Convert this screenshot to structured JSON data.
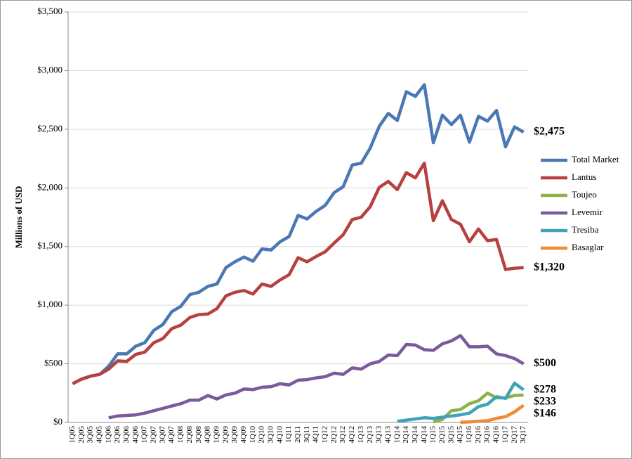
{
  "chart_data": {
    "type": "line",
    "y_label": "Millions of USD",
    "categories": [
      "1Q05",
      "2Q05",
      "3Q05",
      "4Q05",
      "1Q06",
      "2Q06",
      "3Q06",
      "4Q06",
      "1Q07",
      "2Q07",
      "3Q07",
      "4Q07",
      "1Q08",
      "2Q08",
      "3Q08",
      "4Q08",
      "1Q09",
      "2Q09",
      "3Q09",
      "4Q09",
      "1Q10",
      "2Q10",
      "3Q10",
      "4Q10",
      "1Q11",
      "2Q11",
      "3Q11",
      "4Q11",
      "1Q12",
      "2Q12",
      "3Q12",
      "4Q12",
      "1Q13",
      "2Q13",
      "3Q13",
      "4Q13",
      "1Q14",
      "2Q14",
      "3Q14",
      "4Q14",
      "1Q15",
      "2Q15",
      "3Q15",
      "4Q15",
      "1Q16",
      "2Q16",
      "3Q16",
      "4Q16",
      "1Q17",
      "2Q17",
      "3Q17"
    ],
    "ylim": [
      0,
      3500
    ],
    "yticks": [
      {
        "value": 0,
        "label": "$0"
      },
      {
        "value": 500,
        "label": "$500"
      },
      {
        "value": 1000,
        "label": "$1,000"
      },
      {
        "value": 1500,
        "label": "$1,500"
      },
      {
        "value": 2000,
        "label": "$2,000"
      },
      {
        "value": 2500,
        "label": "$2,500"
      },
      {
        "value": 3000,
        "label": "$3,000"
      },
      {
        "value": 3500,
        "label": "$3,500"
      }
    ],
    "grid": true,
    "legend": "right",
    "series": [
      {
        "name": "Total Market",
        "color": "#4a78b4",
        "values": [
          330,
          370,
          395,
          410,
          480,
          585,
          585,
          650,
          680,
          785,
          835,
          945,
          990,
          1090,
          1110,
          1160,
          1180,
          1320,
          1370,
          1410,
          1375,
          1480,
          1470,
          1540,
          1585,
          1765,
          1735,
          1800,
          1850,
          1960,
          2010,
          2195,
          2210,
          2340,
          2525,
          2635,
          2575,
          2820,
          2780,
          2880,
          2385,
          2620,
          2540,
          2620,
          2390,
          2610,
          2570,
          2660,
          2350,
          2520,
          2475
        ],
        "value_labels": [
          null,
          null,
          null,
          null,
          null,
          null,
          null,
          null,
          null,
          null,
          null,
          null,
          null,
          null,
          null,
          null,
          null,
          null,
          null,
          null,
          null,
          null,
          null,
          null,
          null,
          null,
          null,
          null,
          null,
          null,
          null,
          null,
          null,
          null,
          null,
          null,
          null,
          null,
          null,
          null,
          null,
          null,
          null,
          null,
          null,
          null,
          null,
          null,
          null,
          null,
          "$2,475"
        ]
      },
      {
        "name": "Lantus",
        "color": "#b6413f",
        "values": [
          330,
          370,
          395,
          410,
          455,
          525,
          520,
          580,
          600,
          680,
          715,
          800,
          830,
          895,
          920,
          925,
          970,
          1080,
          1110,
          1125,
          1095,
          1180,
          1160,
          1215,
          1260,
          1405,
          1370,
          1415,
          1455,
          1530,
          1600,
          1730,
          1750,
          1840,
          2005,
          2055,
          1985,
          2130,
          2085,
          2210,
          1720,
          1890,
          1730,
          1690,
          1540,
          1650,
          1550,
          1560,
          1305,
          1315,
          1320
        ],
        "value_labels": [
          null,
          null,
          null,
          null,
          null,
          null,
          null,
          null,
          null,
          null,
          null,
          null,
          null,
          null,
          null,
          null,
          null,
          null,
          null,
          null,
          null,
          null,
          null,
          null,
          null,
          null,
          null,
          null,
          null,
          null,
          null,
          null,
          null,
          null,
          null,
          null,
          null,
          null,
          null,
          null,
          null,
          null,
          null,
          null,
          null,
          null,
          null,
          null,
          null,
          null,
          "$1,320"
        ]
      },
      {
        "name": "Toujeo",
        "color": "#8db14b",
        "values": [
          null,
          null,
          null,
          null,
          null,
          null,
          null,
          null,
          null,
          null,
          null,
          null,
          null,
          null,
          null,
          null,
          null,
          null,
          null,
          null,
          null,
          null,
          null,
          null,
          null,
          null,
          null,
          null,
          null,
          null,
          null,
          null,
          null,
          null,
          null,
          null,
          null,
          null,
          null,
          null,
          5,
          25,
          100,
          110,
          160,
          185,
          250,
          210,
          210,
          230,
          233
        ],
        "value_labels": [
          null,
          null,
          null,
          null,
          null,
          null,
          null,
          null,
          null,
          null,
          null,
          null,
          null,
          null,
          null,
          null,
          null,
          null,
          null,
          null,
          null,
          null,
          null,
          null,
          null,
          null,
          null,
          null,
          null,
          null,
          null,
          null,
          null,
          null,
          null,
          null,
          null,
          null,
          null,
          null,
          null,
          null,
          null,
          null,
          null,
          null,
          null,
          null,
          null,
          null,
          "$233"
        ]
      },
      {
        "name": "Levemir",
        "color": "#7a5a9c",
        "values": [
          null,
          null,
          null,
          null,
          40,
          55,
          60,
          65,
          80,
          100,
          120,
          140,
          160,
          190,
          190,
          230,
          200,
          235,
          250,
          285,
          280,
          300,
          305,
          330,
          320,
          360,
          365,
          380,
          390,
          420,
          410,
          465,
          455,
          500,
          520,
          575,
          570,
          665,
          660,
          620,
          615,
          670,
          695,
          740,
          645,
          645,
          650,
          585,
          570,
          545,
          500
        ],
        "value_labels": [
          null,
          null,
          null,
          null,
          null,
          null,
          null,
          null,
          null,
          null,
          null,
          null,
          null,
          null,
          null,
          null,
          null,
          null,
          null,
          null,
          null,
          null,
          null,
          null,
          null,
          null,
          null,
          null,
          null,
          null,
          null,
          null,
          null,
          null,
          null,
          null,
          null,
          null,
          null,
          null,
          null,
          null,
          null,
          null,
          null,
          null,
          null,
          null,
          null,
          null,
          "$500"
        ]
      },
      {
        "name": "Tresiba",
        "color": "#3fa2b9",
        "values": [
          null,
          null,
          null,
          null,
          null,
          null,
          null,
          null,
          null,
          null,
          null,
          null,
          null,
          null,
          null,
          null,
          null,
          null,
          null,
          null,
          null,
          null,
          null,
          null,
          null,
          null,
          null,
          null,
          null,
          null,
          null,
          null,
          null,
          null,
          null,
          null,
          10,
          20,
          30,
          40,
          35,
          45,
          55,
          65,
          80,
          135,
          155,
          220,
          205,
          335,
          278
        ],
        "value_labels": [
          null,
          null,
          null,
          null,
          null,
          null,
          null,
          null,
          null,
          null,
          null,
          null,
          null,
          null,
          null,
          null,
          null,
          null,
          null,
          null,
          null,
          null,
          null,
          null,
          null,
          null,
          null,
          null,
          null,
          null,
          null,
          null,
          null,
          null,
          null,
          null,
          null,
          null,
          null,
          null,
          null,
          null,
          null,
          null,
          null,
          null,
          null,
          null,
          null,
          null,
          "$278"
        ]
      },
      {
        "name": "Basaglar",
        "color": "#f08a33",
        "values": [
          null,
          null,
          null,
          null,
          null,
          null,
          null,
          null,
          null,
          null,
          null,
          null,
          null,
          null,
          null,
          null,
          null,
          null,
          null,
          null,
          null,
          null,
          null,
          null,
          null,
          null,
          null,
          null,
          null,
          null,
          null,
          null,
          null,
          null,
          null,
          null,
          null,
          null,
          null,
          null,
          null,
          null,
          null,
          2,
          5,
          10,
          15,
          35,
          50,
          90,
          146
        ],
        "value_labels": [
          null,
          null,
          null,
          null,
          null,
          null,
          null,
          null,
          null,
          null,
          null,
          null,
          null,
          null,
          null,
          null,
          null,
          null,
          null,
          null,
          null,
          null,
          null,
          null,
          null,
          null,
          null,
          null,
          null,
          null,
          null,
          null,
          null,
          null,
          null,
          null,
          null,
          null,
          null,
          null,
          null,
          null,
          null,
          null,
          null,
          null,
          null,
          null,
          null,
          null,
          "$146"
        ]
      }
    ]
  }
}
